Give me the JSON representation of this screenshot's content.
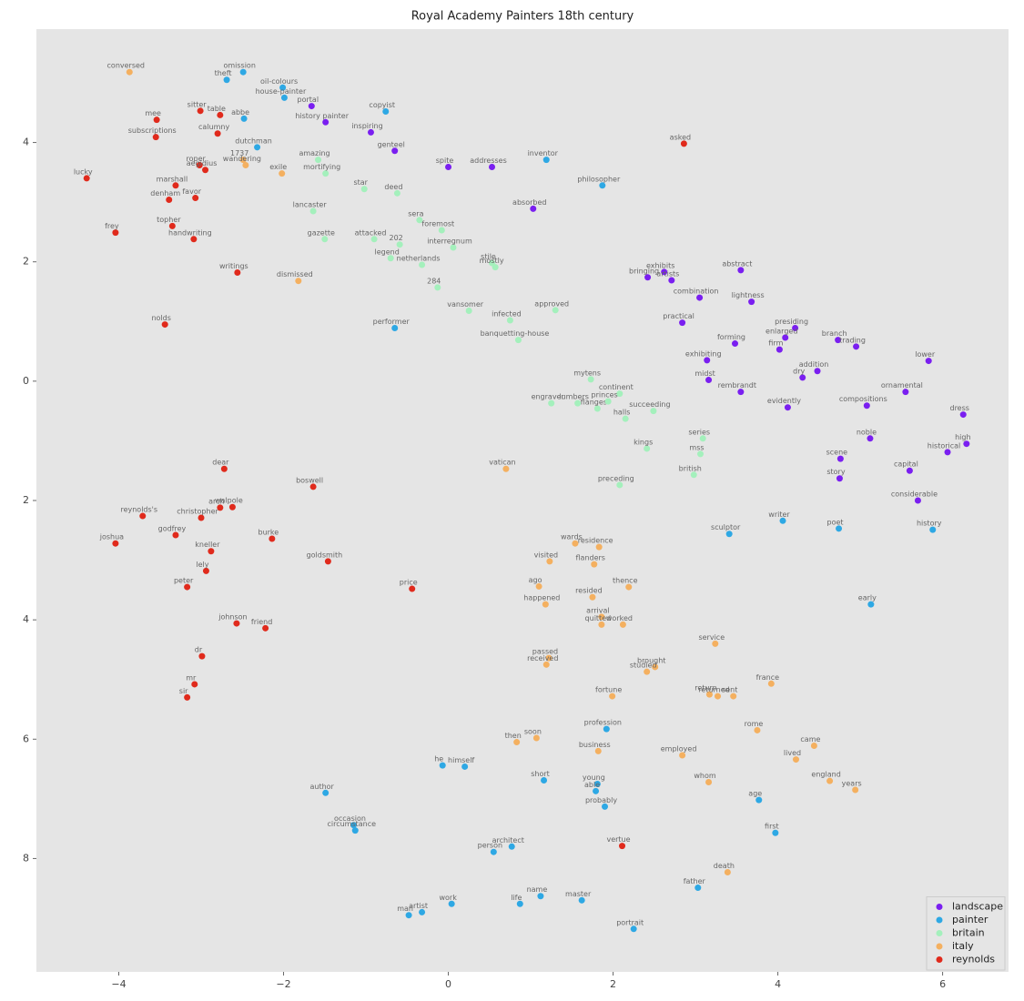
{
  "chart_data": {
    "type": "scatter",
    "title": "Royal Academy Painters 18th century",
    "xlim": [
      -5.0,
      6.8
    ],
    "ylim": [
      -9.9,
      5.9
    ],
    "xticks": [
      {
        "value": -4,
        "label": "−4"
      },
      {
        "value": -2,
        "label": "−2"
      },
      0,
      2,
      4,
      6
    ],
    "yticks": [
      4,
      2,
      0,
      {
        "value": -2,
        "label": "2"
      },
      {
        "value": -4,
        "label": "4"
      },
      {
        "value": -6,
        "label": "6"
      },
      {
        "value": -8,
        "label": "8"
      }
    ],
    "grid": false,
    "legend": "lower right",
    "series": [
      {
        "name": "landscape",
        "color": "#7a1ff0",
        "labels": [
          "portal",
          "history painter",
          "inspiring",
          "genteel",
          "spite",
          "addresses",
          "absorbed",
          "bringing",
          "exhibits",
          "artists",
          "abstract",
          "combination",
          "lightness",
          "practical",
          "presiding",
          "enlarged",
          "branch",
          "trading",
          "firm",
          "forming",
          "lower",
          "exhibiting",
          "addition",
          "dry",
          "midst",
          "rembrandt",
          "ornamental",
          "evidently",
          "compositions",
          "dress",
          "noble",
          "high",
          "historical",
          "scene",
          "capital",
          "story",
          "considerable"
        ],
        "x": [
          -1.66,
          -1.49,
          -0.94,
          -0.65,
          0,
          0.53,
          1.03,
          2.42,
          2.62,
          2.71,
          3.55,
          3.05,
          3.68,
          2.84,
          4.21,
          4.09,
          4.73,
          4.95,
          4.02,
          3.48,
          5.83,
          3.14,
          4.48,
          4.3,
          3.16,
          3.55,
          5.55,
          4.12,
          5.08,
          6.25,
          5.12,
          6.29,
          6.06,
          4.76,
          5.6,
          4.75,
          5.7
        ],
        "values": [
          4.61,
          4.34,
          4.17,
          3.86,
          3.59,
          3.59,
          2.89,
          1.74,
          1.83,
          1.69,
          1.86,
          1.4,
          1.33,
          0.98,
          0.89,
          0.73,
          0.69,
          0.58,
          0.53,
          0.63,
          0.34,
          0.35,
          0.17,
          0.06,
          0.02,
          -0.18,
          -0.18,
          -0.44,
          -0.41,
          -0.56,
          -0.96,
          -1.05,
          -1.19,
          -1.3,
          -1.5,
          -1.63,
          -2.0
        ]
      },
      {
        "name": "painter",
        "color": "#2ea8e4",
        "labels": [
          "omission",
          "theft",
          "oil-colours",
          "house-painter",
          "copyist",
          "abbe",
          "dutchman",
          "inventor",
          "philosopher",
          "performer",
          "writer",
          "poet",
          "sculptor",
          "history",
          "early",
          "profession",
          "he",
          "himself",
          "short",
          "young",
          "able",
          "probably",
          "author",
          "age",
          "occasion",
          "circumstance",
          "first",
          "architect",
          "person",
          "father",
          "name",
          "master",
          "life",
          "work",
          "man",
          "artist",
          "portrait"
        ],
        "x": [
          -2.49,
          -2.69,
          -2.01,
          -1.99,
          -0.76,
          -2.48,
          -2.32,
          1.19,
          1.87,
          -0.65,
          4.06,
          4.74,
          3.41,
          5.88,
          5.13,
          1.92,
          -0.07,
          0.2,
          1.16,
          1.81,
          1.79,
          1.9,
          -1.49,
          3.77,
          -1.15,
          -1.13,
          3.97,
          0.77,
          0.55,
          3.03,
          1.12,
          1.62,
          0.87,
          0.04,
          -0.48,
          -0.32,
          2.25
        ],
        "values": [
          5.18,
          5.05,
          4.92,
          4.75,
          4.52,
          4.4,
          3.92,
          3.71,
          3.28,
          0.89,
          -2.34,
          -2.47,
          -2.56,
          -2.49,
          -3.74,
          -5.83,
          -6.44,
          -6.46,
          -6.69,
          -6.75,
          -6.87,
          -7.13,
          -6.9,
          -7.02,
          -7.44,
          -7.53,
          -7.57,
          -7.8,
          -7.89,
          -8.49,
          -8.63,
          -8.7,
          -8.76,
          -8.76,
          -8.95,
          -8.9,
          -9.18
        ]
      },
      {
        "name": "britain",
        "color": "#a4f0bc",
        "labels": [
          "amazing",
          "mortifying",
          "star",
          "deed",
          "lancaster",
          "sera",
          "foremost",
          "gazette",
          "attacked",
          "202",
          "legend",
          "netherlands",
          "interregnum",
          "stile",
          "mostly",
          "284",
          "vansomer",
          "infected",
          "approved",
          "banquetting-house",
          "mytens",
          "continent",
          "engraver",
          "lumbers",
          "flanges",
          "princes",
          "succeeding",
          "halls",
          "series",
          "kings",
          "mss",
          "british",
          "preceding"
        ],
        "x": [
          -1.58,
          -1.49,
          -1.02,
          -0.62,
          -1.64,
          -0.35,
          -0.08,
          -1.5,
          -0.9,
          -0.59,
          -0.7,
          -0.32,
          0.06,
          0.53,
          0.57,
          -0.13,
          0.25,
          0.75,
          1.3,
          0.85,
          1.73,
          2.08,
          1.25,
          1.57,
          1.81,
          1.94,
          2.49,
          2.15,
          3.09,
          2.41,
          3.06,
          2.98,
          2.08
        ],
        "values": [
          3.71,
          3.48,
          3.22,
          3.15,
          2.85,
          2.7,
          2.53,
          2.38,
          2.38,
          2.29,
          2.06,
          1.95,
          2.24,
          1.98,
          1.91,
          1.57,
          1.18,
          1.02,
          1.19,
          0.69,
          0.03,
          -0.21,
          -0.37,
          -0.37,
          -0.46,
          -0.34,
          -0.5,
          -0.63,
          -0.96,
          -1.13,
          -1.22,
          -1.57,
          -1.74
        ]
      },
      {
        "name": "italy",
        "color": "#f4b060",
        "labels": [
          "conversed",
          "1737",
          "wandering",
          "exile",
          "dismissed",
          "vatican",
          "wards",
          "residence",
          "visited",
          "flanders",
          "thence",
          "ago",
          "resided",
          "happened",
          "arrival",
          "quitted",
          "worked",
          "service",
          "passed",
          "received",
          "brought",
          "studied",
          "france",
          "return",
          "returned",
          "sent",
          "fortune",
          "rome",
          "came",
          "soon",
          "then",
          "business",
          "employed",
          "lived",
          "england",
          "years",
          "whom",
          "death"
        ],
        "x": [
          -3.87,
          -2.49,
          -2.46,
          -2.02,
          -1.82,
          0.7,
          1.54,
          1.83,
          1.23,
          1.77,
          2.19,
          1.1,
          1.75,
          1.18,
          1.86,
          1.86,
          2.12,
          3.24,
          1.22,
          1.19,
          2.51,
          2.41,
          3.92,
          3.17,
          3.27,
          3.46,
          1.99,
          3.75,
          4.44,
          1.07,
          0.83,
          1.82,
          2.84,
          4.22,
          4.63,
          4.94,
          3.16,
          3.39
        ],
        "values": [
          5.18,
          3.71,
          3.62,
          3.48,
          1.68,
          -1.47,
          -2.72,
          -2.78,
          -3.02,
          -3.07,
          -3.45,
          -3.44,
          -3.62,
          -3.74,
          -3.95,
          -4.08,
          -4.08,
          -4.4,
          -4.64,
          -4.75,
          -4.79,
          -4.87,
          -5.07,
          -5.25,
          -5.28,
          -5.28,
          -5.28,
          -5.85,
          -6.11,
          -5.98,
          -6.05,
          -6.2,
          -6.27,
          -6.34,
          -6.7,
          -6.85,
          -6.72,
          -8.23
        ]
      },
      {
        "name": "reynolds",
        "color": "#e02a1c",
        "labels": [
          "mee",
          "sitter",
          "table",
          "calumny",
          "subscriptions",
          "asked",
          "roper",
          "aegidius",
          "lucky",
          "marshall",
          "denham",
          "favor",
          "topher",
          "frey",
          "handwriting",
          "writings",
          "nolds",
          "dear",
          "boswell",
          "reynolds's",
          "christopher",
          "walpole",
          "arch",
          "godfrey",
          "burke",
          "joshua",
          "kneller",
          "lely",
          "goldsmith",
          "peter",
          "price",
          "johnson",
          "friend",
          "dr",
          "mr",
          "sir",
          "vertue"
        ],
        "x": [
          -3.54,
          -3.01,
          -2.77,
          -2.8,
          -3.55,
          2.86,
          -3.02,
          -2.95,
          -4.39,
          -3.31,
          -3.39,
          -3.07,
          -3.35,
          -4.04,
          -3.09,
          -2.56,
          -3.44,
          -2.72,
          -1.64,
          -3.71,
          -3.0,
          -2.62,
          -2.77,
          -3.31,
          -2.14,
          -4.04,
          -2.88,
          -2.94,
          -1.46,
          -3.17,
          -0.44,
          -2.57,
          -2.22,
          -2.99,
          -3.08,
          -3.17,
          2.11
        ],
        "values": [
          4.38,
          4.53,
          4.46,
          4.15,
          4.09,
          3.98,
          3.62,
          3.54,
          3.4,
          3.28,
          3.04,
          3.07,
          2.6,
          2.49,
          2.38,
          1.82,
          0.95,
          -1.47,
          -1.77,
          -2.26,
          -2.29,
          -2.11,
          -2.12,
          -2.58,
          -2.64,
          -2.72,
          -2.85,
          -3.18,
          -3.02,
          -3.45,
          -3.48,
          -4.06,
          -4.14,
          -4.61,
          -5.08,
          -5.3,
          -7.79
        ]
      }
    ]
  }
}
